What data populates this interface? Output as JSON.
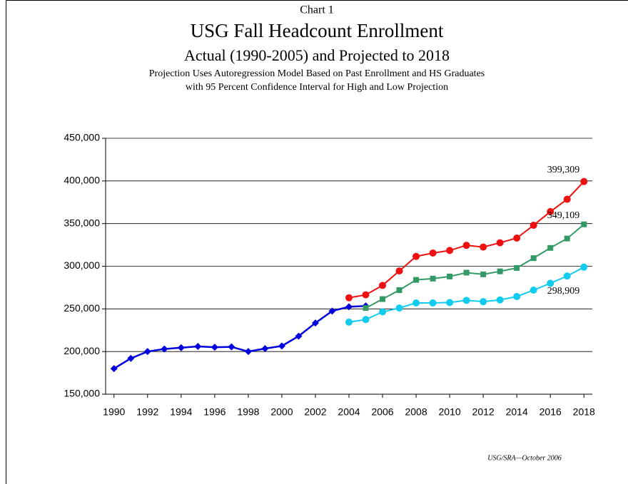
{
  "chart_data": {
    "type": "line",
    "header": "Chart 1",
    "title": "USG Fall Headcount Enrollment",
    "subtitle": "Actual (1990-2005) and Projected to 2018",
    "description": [
      "Projection Uses Autoregression Model Based on Past Enrollment and HS Graduates",
      "with 95 Percent Confidence Interval for High and Low Projection"
    ],
    "source": "USG/SRA—October 2006",
    "x": [
      1990,
      1991,
      1992,
      1993,
      1994,
      1995,
      1996,
      1997,
      1998,
      1999,
      2000,
      2001,
      2002,
      2003,
      2004,
      2005,
      2006,
      2007,
      2008,
      2009,
      2010,
      2011,
      2012,
      2013,
      2014,
      2015,
      2016,
      2017,
      2018
    ],
    "xlim": [
      1989.5,
      2018.5
    ],
    "xticks": [
      1990,
      1992,
      1994,
      1996,
      1998,
      2000,
      2002,
      2004,
      2006,
      2008,
      2010,
      2012,
      2014,
      2016,
      2018
    ],
    "ylim": [
      150000,
      450000
    ],
    "yticks": [
      {
        "value": 150000,
        "label": "150,000"
      },
      {
        "value": 200000,
        "label": "200,000"
      },
      {
        "value": 250000,
        "label": "250,000"
      },
      {
        "value": 300000,
        "label": "300,000"
      },
      {
        "value": 350000,
        "label": "350,000"
      },
      {
        "value": 400000,
        "label": "400,000"
      },
      {
        "value": 450000,
        "label": "450,000"
      }
    ],
    "grid": true,
    "series": [
      {
        "color": "#0000dd",
        "marker": "diamond",
        "values": [
          180000,
          192000,
          200000,
          203000,
          204500,
          206000,
          205000,
          205500,
          200000,
          203500,
          206500,
          218000,
          233500,
          247500,
          252500,
          253500,
          null,
          null,
          null,
          null,
          null,
          null,
          null,
          null,
          null,
          null,
          null,
          null,
          null
        ]
      },
      {
        "color": "#ee1111",
        "marker": "circle",
        "values": [
          null,
          null,
          null,
          null,
          null,
          null,
          null,
          null,
          null,
          null,
          null,
          null,
          null,
          null,
          263000,
          266500,
          277500,
          294500,
          311500,
          315500,
          318500,
          324500,
          322500,
          327500,
          333000,
          348000,
          364000,
          378500,
          399309
        ],
        "value_labels": [
          null,
          null,
          null,
          null,
          null,
          null,
          null,
          null,
          null,
          null,
          null,
          null,
          null,
          null,
          null,
          null,
          null,
          null,
          null,
          null,
          null,
          null,
          null,
          null,
          null,
          null,
          null,
          null,
          "399,309"
        ]
      },
      {
        "color": "#339966",
        "marker": "square",
        "values": [
          null,
          null,
          null,
          null,
          null,
          null,
          null,
          null,
          null,
          null,
          null,
          null,
          null,
          null,
          null,
          251000,
          261500,
          272000,
          284000,
          285500,
          288000,
          292500,
          290500,
          294000,
          298000,
          309500,
          321500,
          332500,
          349109
        ],
        "value_labels": [
          null,
          null,
          null,
          null,
          null,
          null,
          null,
          null,
          null,
          null,
          null,
          null,
          null,
          null,
          null,
          null,
          null,
          null,
          null,
          null,
          null,
          null,
          null,
          null,
          null,
          null,
          null,
          null,
          "349,109"
        ]
      },
      {
        "color": "#11ccee",
        "marker": "circle",
        "values": [
          null,
          null,
          null,
          null,
          null,
          null,
          null,
          null,
          null,
          null,
          null,
          null,
          null,
          null,
          234500,
          237500,
          246500,
          251000,
          257000,
          257000,
          257500,
          260000,
          258500,
          260500,
          264500,
          272000,
          280000,
          288500,
          298909
        ],
        "value_labels": [
          null,
          null,
          null,
          null,
          null,
          null,
          null,
          null,
          null,
          null,
          null,
          null,
          null,
          null,
          null,
          null,
          null,
          null,
          null,
          null,
          null,
          null,
          null,
          null,
          null,
          null,
          null,
          null,
          "298,909"
        ]
      }
    ]
  }
}
